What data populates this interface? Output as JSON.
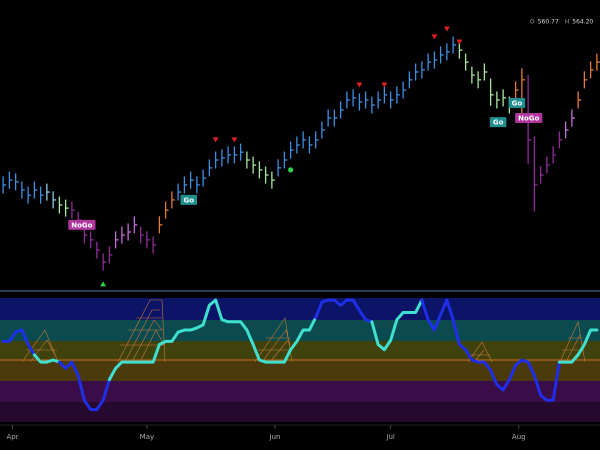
{
  "chart_data": [
    {
      "type": "ohlc",
      "xlim": [
        -0.5,
        95.5
      ],
      "ylim": [
        495,
        580
      ],
      "readout": [
        {
          "label": "O",
          "value": "560.77"
        },
        {
          "label": "H",
          "value": "564.20"
        }
      ],
      "close": [
        525.8,
        527.2,
        526.7,
        524.3,
        522.8,
        524.3,
        522.8,
        523.7,
        521.4,
        519.9,
        519.0,
        518.4,
        515.5,
        511.1,
        509.7,
        506.7,
        503.2,
        505.3,
        509.7,
        511.1,
        512.0,
        514.1,
        511.1,
        509.7,
        508.2,
        514.1,
        518.4,
        521.4,
        523.7,
        525.8,
        527.2,
        525.8,
        527.8,
        530.8,
        533.1,
        533.7,
        534.6,
        534.6,
        535.4,
        533.1,
        531.6,
        530.2,
        528.7,
        527.2,
        530.8,
        533.1,
        536.0,
        537.5,
        539.0,
        537.5,
        539.0,
        541.9,
        545.4,
        545.4,
        547.8,
        550.7,
        551.3,
        550.1,
        550.7,
        549.2,
        550.7,
        552.2,
        550.7,
        552.2,
        553.6,
        556.6,
        558.9,
        559.5,
        561.8,
        562.4,
        563.9,
        564.8,
        566.8,
        565.3,
        561.8,
        558.0,
        556.6,
        558.9,
        552.2,
        550.7,
        551.3,
        549.2,
        553.6,
        556.6,
        539.0,
        525.8,
        528.7,
        531.6,
        534.6,
        539.0,
        541.9,
        545.4,
        550.7,
        556.6,
        559.5,
        561.8
      ],
      "high": [
        528.3,
        529.7,
        529.2,
        526.8,
        525.3,
        526.8,
        525.3,
        526.2,
        523.9,
        522.4,
        521.5,
        520.9,
        518.0,
        513.6,
        512.2,
        509.2,
        505.7,
        507.8,
        512.2,
        513.6,
        514.5,
        516.6,
        513.6,
        512.2,
        510.7,
        516.6,
        520.9,
        523.9,
        526.2,
        528.3,
        529.7,
        528.3,
        530.3,
        533.3,
        535.6,
        536.2,
        537.1,
        537.1,
        537.9,
        535.6,
        534.1,
        532.7,
        531.2,
        529.7,
        533.3,
        535.6,
        538.5,
        540.0,
        541.5,
        540.0,
        541.5,
        544.4,
        547.9,
        547.9,
        550.3,
        553.2,
        553.8,
        552.6,
        553.2,
        551.7,
        553.2,
        554.7,
        553.2,
        554.7,
        556.1,
        559.1,
        561.4,
        562.0,
        564.3,
        564.9,
        566.4,
        567.3,
        569.3,
        567.8,
        564.3,
        560.5,
        559.1,
        561.4,
        557.0,
        553.2,
        553.8,
        551.7,
        556.1,
        560.0,
        558.0,
        540.0,
        531.2,
        534.1,
        537.1,
        541.5,
        544.4,
        547.9,
        553.2,
        559.1,
        562.0,
        564.3
      ],
      "low": [
        523.3,
        524.7,
        524.2,
        521.8,
        520.3,
        521.8,
        520.3,
        521.2,
        518.9,
        517.4,
        516.5,
        515.9,
        513.0,
        508.6,
        507.2,
        504.2,
        500.7,
        502.8,
        507.2,
        508.6,
        509.5,
        511.6,
        508.6,
        507.2,
        505.7,
        511.6,
        515.9,
        518.9,
        521.2,
        523.3,
        524.7,
        523.3,
        525.3,
        528.3,
        530.6,
        531.2,
        532.1,
        532.1,
        532.9,
        530.6,
        529.1,
        527.7,
        526.2,
        524.7,
        528.3,
        530.6,
        533.5,
        535.0,
        536.5,
        535.0,
        536.5,
        539.4,
        542.9,
        542.9,
        545.3,
        548.2,
        548.8,
        547.6,
        548.2,
        546.7,
        548.2,
        549.7,
        548.2,
        549.7,
        551.1,
        554.1,
        556.4,
        557.0,
        559.3,
        559.9,
        561.4,
        562.3,
        564.3,
        562.8,
        559.3,
        555.5,
        554.1,
        556.4,
        549.0,
        548.2,
        548.8,
        546.7,
        551.1,
        545.0,
        532.0,
        518.0,
        526.2,
        529.1,
        532.1,
        536.5,
        539.4,
        542.9,
        548.2,
        554.1,
        557.0,
        559.3
      ],
      "colors": [
        "#3d8fe0",
        "#3d8fe0",
        "#3d8fe0",
        "#3d8fe0",
        "#3d8fe0",
        "#3d8fe0",
        "#3d8fe0",
        "#8ecae6",
        "#8ecae6",
        "#a8e6a1",
        "#a8e6a1",
        "#8e2c9a",
        "#8e2c9a",
        "#8e2c9a",
        "#8e2c9a",
        "#8e2c9a",
        "#8e2c9a",
        "#8e2c9a",
        "#c46cd6",
        "#c46cd6",
        "#c46cd6",
        "#c46cd6",
        "#8e2c9a",
        "#8e2c9a",
        "#8e2c9a",
        "#e07b39",
        "#e07b39",
        "#e07b39",
        "#3d8fe0",
        "#3d8fe0",
        "#3d8fe0",
        "#3d8fe0",
        "#3d8fe0",
        "#3d8fe0",
        "#3d8fe0",
        "#3d8fe0",
        "#3d8fe0",
        "#3d8fe0",
        "#3d8fe0",
        "#a8e6a1",
        "#a8e6a1",
        "#a8e6a1",
        "#a8e6a1",
        "#a8e6a1",
        "#3d8fe0",
        "#3d8fe0",
        "#3d8fe0",
        "#3d8fe0",
        "#3d8fe0",
        "#3d8fe0",
        "#3d8fe0",
        "#3d8fe0",
        "#3d8fe0",
        "#3d8fe0",
        "#3d8fe0",
        "#3d8fe0",
        "#3d8fe0",
        "#3d8fe0",
        "#3d8fe0",
        "#3d8fe0",
        "#3d8fe0",
        "#3d8fe0",
        "#3d8fe0",
        "#3d8fe0",
        "#3d8fe0",
        "#3d8fe0",
        "#3d8fe0",
        "#3d8fe0",
        "#3d8fe0",
        "#3d8fe0",
        "#3d8fe0",
        "#3d8fe0",
        "#3d8fe0",
        "#a8e6a1",
        "#a8e6a1",
        "#a8e6a1",
        "#a8e6a1",
        "#a8e6a1",
        "#a8e6a1",
        "#a8e6a1",
        "#a8e6a1",
        "#a8e6a1",
        "#e07b39",
        "#e07b39",
        "#8e2c9a",
        "#8e2c9a",
        "#8e2c9a",
        "#8e2c9a",
        "#8e2c9a",
        "#8e2c9a",
        "#c46cd6",
        "#c46cd6",
        "#e07b39",
        "#e07b39",
        "#e07b39",
        "#e07b39"
      ],
      "annotations": [
        {
          "text": "Go",
          "x": 29.7,
          "y": 521.4,
          "color": "#1f8f8f"
        },
        {
          "text": "NoGo",
          "x": 12.6,
          "y": 514.1,
          "color": "#b0359f"
        },
        {
          "text": "Go",
          "x": 82.2,
          "y": 549.8,
          "color": "#1f8f8f"
        },
        {
          "text": "Go",
          "x": 79.2,
          "y": 544.2,
          "color": "#1f8f8f"
        },
        {
          "text": "NoGo",
          "x": 84.1,
          "y": 545.4,
          "color": "#b0359f"
        }
      ],
      "signals": [
        {
          "shape": "triangle-down",
          "x": 34,
          "y": 539,
          "color": "#e02020"
        },
        {
          "shape": "triangle-down",
          "x": 37,
          "y": 539,
          "color": "#e02020"
        },
        {
          "shape": "triangle-down",
          "x": 57,
          "y": 555.1,
          "color": "#e02020"
        },
        {
          "shape": "triangle-down",
          "x": 61,
          "y": 555.1,
          "color": "#e02020"
        },
        {
          "shape": "triangle-down",
          "x": 69,
          "y": 569.2,
          "color": "#e02020"
        },
        {
          "shape": "triangle-down",
          "x": 71,
          "y": 571.5,
          "color": "#e02020"
        },
        {
          "shape": "triangle-down",
          "x": 73,
          "y": 567.7,
          "color": "#e02020"
        },
        {
          "shape": "triangle-up",
          "x": 16,
          "y": 496.8,
          "color": "#30d050"
        },
        {
          "shape": "dot",
          "x": 46,
          "y": 530.2,
          "color": "#30d050"
        }
      ]
    },
    {
      "type": "line",
      "xlim": [
        -0.5,
        95.5
      ],
      "ylim": [
        -6,
        6
      ],
      "xticks": [
        {
          "value": 1.5,
          "label": "Apr"
        },
        {
          "value": 23,
          "label": "May"
        },
        {
          "value": 43.5,
          "label": "Jun"
        },
        {
          "value": 62,
          "label": "Jul"
        },
        {
          "value": 82.5,
          "label": "Aug"
        }
      ],
      "zero_line_color": "#d2691e",
      "values": [
        1.8,
        1.8,
        2.7,
        2.9,
        1.5,
        0.5,
        -0.2,
        -0.2,
        0,
        -0.2,
        -0.8,
        -0.2,
        -1.5,
        -3.9,
        -4.8,
        -4.8,
        -3.9,
        -1.9,
        -0.8,
        -0.2,
        -0.2,
        -0.2,
        -0.2,
        -0.2,
        -0.2,
        1.5,
        1.8,
        1.8,
        2.7,
        2.9,
        2.9,
        3.1,
        3.4,
        5.3,
        5.8,
        3.9,
        3.7,
        3.7,
        3.7,
        2.9,
        1.5,
        0,
        -0.2,
        -0.2,
        -0.2,
        -0.2,
        1.0,
        1.8,
        2.9,
        2.9,
        4.1,
        5.6,
        5.8,
        5.8,
        5.3,
        5.8,
        5.8,
        4.8,
        3.9,
        3.7,
        1.5,
        1.0,
        1.9,
        3.9,
        4.6,
        4.6,
        4.6,
        5.8,
        3.9,
        2.9,
        4.4,
        5.8,
        3.9,
        1.5,
        1.0,
        0,
        -0.2,
        -0.2,
        -1.0,
        -2.4,
        -2.9,
        -1.9,
        -0.5,
        0,
        -0.2,
        -1.5,
        -3.4,
        -3.9,
        -3.9,
        -0.2,
        -0.2,
        -0.2,
        0.5,
        1.5,
        2.9,
        2.9
      ],
      "colors": [
        "#1f2ee8",
        "#1f2ee8",
        "#1f2ee8",
        "#1f2ee8",
        "#1f2ee8",
        "#1f2ee8",
        "#3fe0d0",
        "#3fe0d0",
        "#3fe0d0",
        "#3fe0d0",
        "#1f2ee8",
        "#1f2ee8",
        "#1f2ee8",
        "#1f2ee8",
        "#1f2ee8",
        "#1f2ee8",
        "#1f2ee8",
        "#1f2ee8",
        "#3fe0d0",
        "#3fe0d0",
        "#3fe0d0",
        "#3fe0d0",
        "#3fe0d0",
        "#3fe0d0",
        "#3fe0d0",
        "#3fe0d0",
        "#3fe0d0",
        "#3fe0d0",
        "#3fe0d0",
        "#3fe0d0",
        "#3fe0d0",
        "#3fe0d0",
        "#3fe0d0",
        "#3fe0d0",
        "#3fe0d0",
        "#3fe0d0",
        "#3fe0d0",
        "#3fe0d0",
        "#3fe0d0",
        "#3fe0d0",
        "#3fe0d0",
        "#3fe0d0",
        "#3fe0d0",
        "#3fe0d0",
        "#3fe0d0",
        "#3fe0d0",
        "#3fe0d0",
        "#3fe0d0",
        "#3fe0d0",
        "#3fe0d0",
        "#3fe0d0",
        "#1f2ee8",
        "#1f2ee8",
        "#1f2ee8",
        "#1f2ee8",
        "#1f2ee8",
        "#1f2ee8",
        "#1f2ee8",
        "#1f2ee8",
        "#1f2ee8",
        "#3fe0d0",
        "#3fe0d0",
        "#3fe0d0",
        "#3fe0d0",
        "#3fe0d0",
        "#3fe0d0",
        "#3fe0d0",
        "#3fe0d0",
        "#1f2ee8",
        "#1f2ee8",
        "#1f2ee8",
        "#1f2ee8",
        "#1f2ee8",
        "#1f2ee8",
        "#1f2ee8",
        "#1f2ee8",
        "#1f2ee8",
        "#1f2ee8",
        "#1f2ee8",
        "#1f2ee8",
        "#1f2ee8",
        "#1f2ee8",
        "#1f2ee8",
        "#1f2ee8",
        "#1f2ee8",
        "#1f2ee8",
        "#1f2ee8",
        "#1f2ee8",
        "#1f2ee8",
        "#1f2ee8",
        "#3fe0d0",
        "#3fe0d0",
        "#3fe0d0",
        "#3fe0d0",
        "#3fe0d0",
        "#3fe0d0"
      ]
    }
  ]
}
